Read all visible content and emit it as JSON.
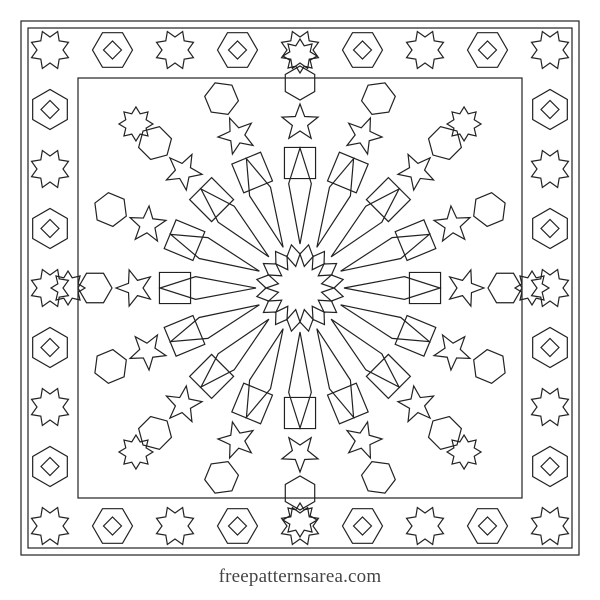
{
  "caption": "freepatternsarea.com",
  "colors": {
    "line": "#222222",
    "background": "#ffffff",
    "caption": "#444444"
  },
  "pattern": {
    "name": "islamic-geometric-16-point-star-tile",
    "center_star_points": 16,
    "motifs": [
      "16-point-rosette",
      "8-point-stars",
      "5-point-stars",
      "hexagon-cells",
      "interlace-border"
    ]
  }
}
